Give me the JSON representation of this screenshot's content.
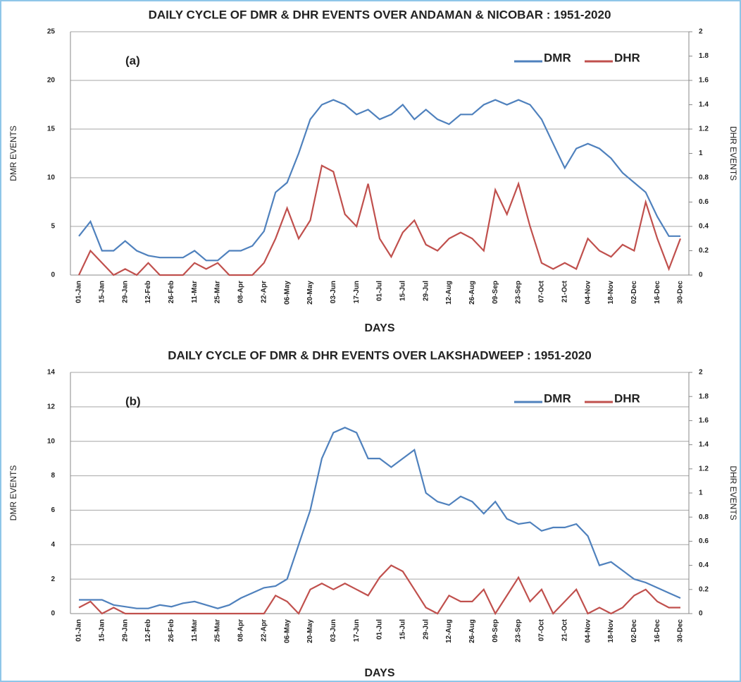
{
  "chart_data": [
    {
      "type": "line",
      "title": "DAILY CYCLE OF DMR & DHR EVENTS OVER ANDAMAN & NICOBAR : 1951-2020",
      "annotation": "(a)",
      "x_label": "DAYS",
      "y_label": "DMR EVENTS",
      "y2_label": "DHR EVENTS",
      "categories": [
        "01-Jan",
        null,
        "15-Jan",
        null,
        "29-Jan",
        null,
        "12-Feb",
        null,
        "26-Feb",
        null,
        "11-Mar",
        null,
        "25-Mar",
        null,
        "08-Apr",
        null,
        "22-Apr",
        null,
        "06-May",
        null,
        "20-May",
        null,
        "03-Jun",
        null,
        "17-Jun",
        null,
        "01-Jul",
        null,
        "15-Jul",
        null,
        "29-Jul",
        null,
        "12-Aug",
        null,
        "26-Aug",
        null,
        "09-Sep",
        null,
        "23-Sep",
        null,
        "07-Oct",
        null,
        "21-Oct",
        null,
        "04-Nov",
        null,
        "18-Nov",
        null,
        "02-Dec",
        null,
        "16-Dec",
        null,
        "30-Dec"
      ],
      "ylim": [
        0,
        25
      ],
      "yticks": [
        0,
        5,
        10,
        15,
        20,
        25
      ],
      "y2lim": [
        0,
        2
      ],
      "y2ticks": [
        0,
        0.2,
        0.4,
        0.6,
        0.8,
        1,
        1.2,
        1.4,
        1.6,
        1.8,
        2
      ],
      "grid": true,
      "legend": "top-right",
      "series": [
        {
          "name": "DMR",
          "color": "#4f81bd",
          "values": [
            4,
            5.5,
            2.5,
            2.5,
            3.5,
            2.5,
            2,
            1.8,
            1.8,
            1.8,
            2.5,
            1.5,
            1.5,
            2.5,
            2.5,
            3,
            4.5,
            8.5,
            9.5,
            12.5,
            16,
            17.5,
            18,
            17.5,
            16.5,
            17,
            16,
            16.5,
            17.5,
            16,
            17,
            16,
            15.5,
            16.5,
            16.5,
            17.5,
            18,
            17.5,
            18,
            17.5,
            16,
            13.5,
            11,
            13,
            13.5,
            13,
            12,
            10.5,
            9.5,
            8.5,
            6,
            4,
            4
          ]
        },
        {
          "name": "DHR",
          "color": "#c0504d",
          "axis": "y2",
          "values": [
            0,
            0.2,
            0.1,
            0,
            0.05,
            0,
            0.1,
            0,
            0,
            0,
            0.1,
            0.05,
            0.1,
            0,
            0,
            0,
            0.1,
            0.3,
            0.55,
            0.3,
            0.45,
            0.9,
            0.85,
            0.5,
            0.4,
            0.75,
            0.3,
            0.15,
            0.35,
            0.45,
            0.25,
            0.2,
            0.3,
            0.35,
            0.3,
            0.2,
            0.7,
            0.5,
            0.75,
            0.4,
            0.1,
            0.05,
            0.1,
            0.05,
            0.3,
            0.2,
            0.15,
            0.25,
            0.2,
            0.6,
            0.3,
            0.05,
            0.3
          ]
        }
      ]
    },
    {
      "type": "line",
      "title": "DAILY CYCLE OF DMR & DHR EVENTS OVER LAKSHADWEEP : 1951-2020",
      "annotation": "(b)",
      "x_label": "DAYS",
      "y_label": "DMR EVENTS",
      "y2_label": "DHR EVENTS",
      "categories": [
        "01-Jan",
        null,
        "15-Jan",
        null,
        "29-Jan",
        null,
        "12-Feb",
        null,
        "26-Feb",
        null,
        "11-Mar",
        null,
        "25-Mar",
        null,
        "08-Apr",
        null,
        "22-Apr",
        null,
        "06-May",
        null,
        "20-May",
        null,
        "03-Jun",
        null,
        "17-Jun",
        null,
        "01-Jul",
        null,
        "15-Jul",
        null,
        "29-Jul",
        null,
        "12-Aug",
        null,
        "26-Aug",
        null,
        "09-Sep",
        null,
        "23-Sep",
        null,
        "07-Oct",
        null,
        "21-Oct",
        null,
        "04-Nov",
        null,
        "18-Nov",
        null,
        "02-Dec",
        null,
        "16-Dec",
        null,
        "30-Dec"
      ],
      "ylim": [
        0,
        14
      ],
      "yticks": [
        0,
        2,
        4,
        6,
        8,
        10,
        12,
        14
      ],
      "y2lim": [
        0,
        2
      ],
      "y2ticks": [
        0,
        0.2,
        0.4,
        0.6,
        0.8,
        1,
        1.2,
        1.4,
        1.6,
        1.8,
        2
      ],
      "grid": true,
      "legend": "top-right",
      "series": [
        {
          "name": "DMR",
          "color": "#4f81bd",
          "values": [
            0.8,
            0.8,
            0.8,
            0.5,
            0.4,
            0.3,
            0.3,
            0.5,
            0.4,
            0.6,
            0.7,
            0.5,
            0.3,
            0.5,
            0.9,
            1.2,
            1.5,
            1.6,
            2,
            4,
            6,
            9,
            10.5,
            10.8,
            10.5,
            9,
            9,
            8.5,
            9,
            9.5,
            7,
            6.5,
            6.3,
            6.8,
            6.5,
            5.8,
            6.5,
            5.5,
            5.2,
            5.3,
            4.8,
            5,
            5,
            5.2,
            4.5,
            2.8,
            3,
            2.5,
            2,
            1.8,
            1.5,
            1.2,
            0.9
          ]
        },
        {
          "name": "DHR",
          "color": "#c0504d",
          "axis": "y2",
          "values": [
            0.05,
            0.1,
            0,
            0.05,
            0,
            0,
            0,
            0,
            0,
            0,
            0,
            0,
            0,
            0,
            0,
            0,
            0,
            0.15,
            0.1,
            0,
            0.2,
            0.25,
            0.2,
            0.25,
            0.2,
            0.15,
            0.3,
            0.4,
            0.35,
            0.2,
            0.05,
            0,
            0.15,
            0.1,
            0.1,
            0.2,
            0,
            0.15,
            0.3,
            0.1,
            0.2,
            0,
            0.1,
            0.2,
            0,
            0.05,
            0,
            0.05,
            0.15,
            0.2,
            0.1,
            0.05,
            0.05
          ]
        }
      ]
    }
  ]
}
